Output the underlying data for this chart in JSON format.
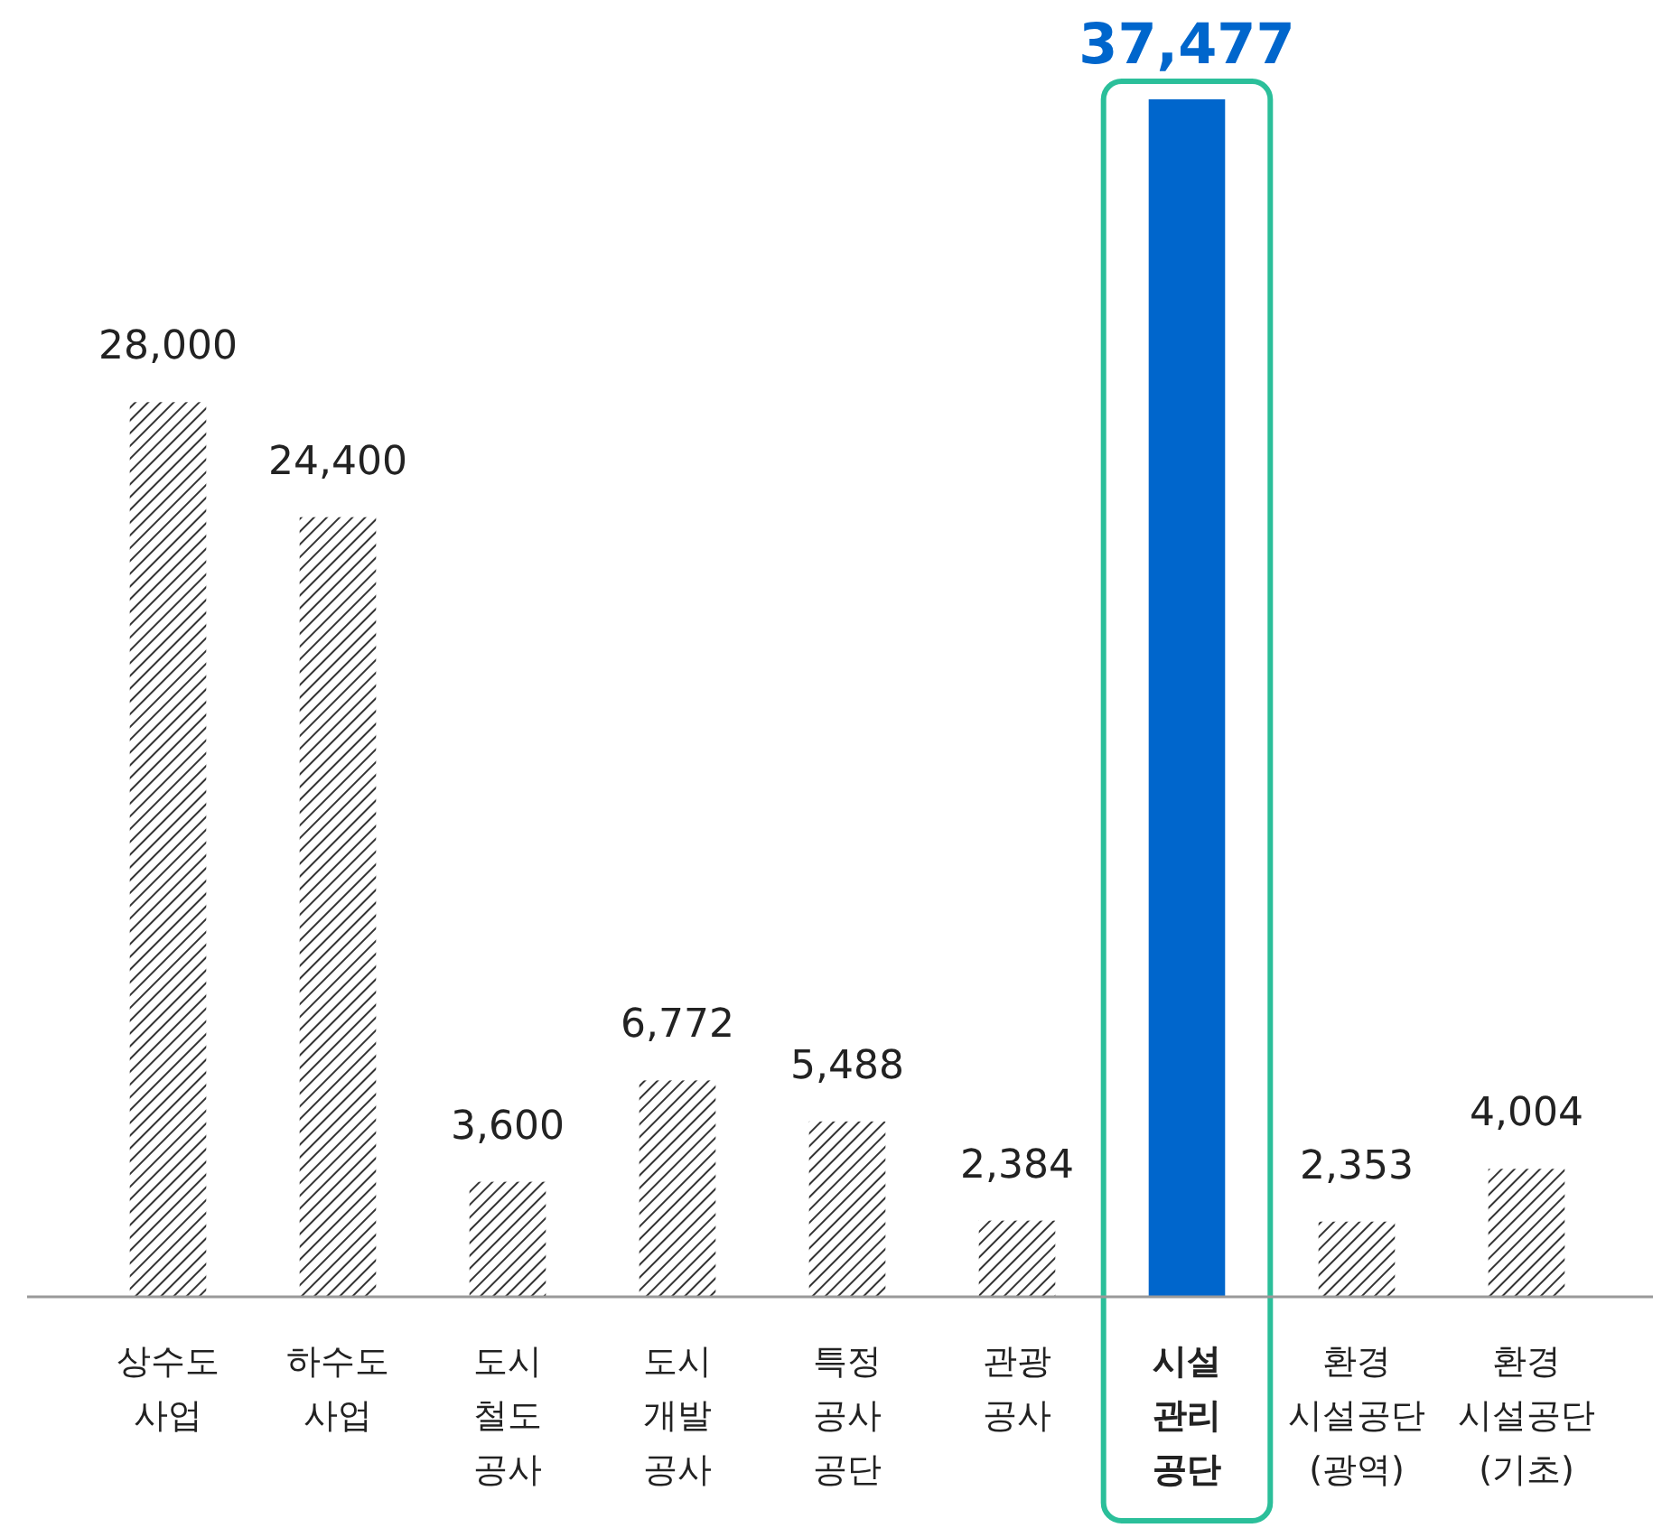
{
  "chart_data": {
    "type": "bar",
    "categories": [
      "상수도 사업",
      "하수도 사업",
      "도시 철도 공사",
      "도시 개발 공사",
      "특정 공사 공단",
      "관광 공사",
      "시설 관리 공단",
      "환경 시설공단 (광역)",
      "환경 시설공단 (기초)"
    ],
    "values": [
      28000,
      24400,
      3600,
      6772,
      5488,
      2384,
      37477,
      2353,
      4004
    ],
    "value_labels": [
      "28,000",
      "24,400",
      "3,600",
      "6,772",
      "5,488",
      "2,384",
      "37,477",
      "2,353",
      "4,004"
    ],
    "colors": [
      "#333333",
      "#333333",
      "#333333",
      "#333333",
      "#333333",
      "#333333",
      "#0066cc",
      "#333333",
      "#333333"
    ]
  }
}
